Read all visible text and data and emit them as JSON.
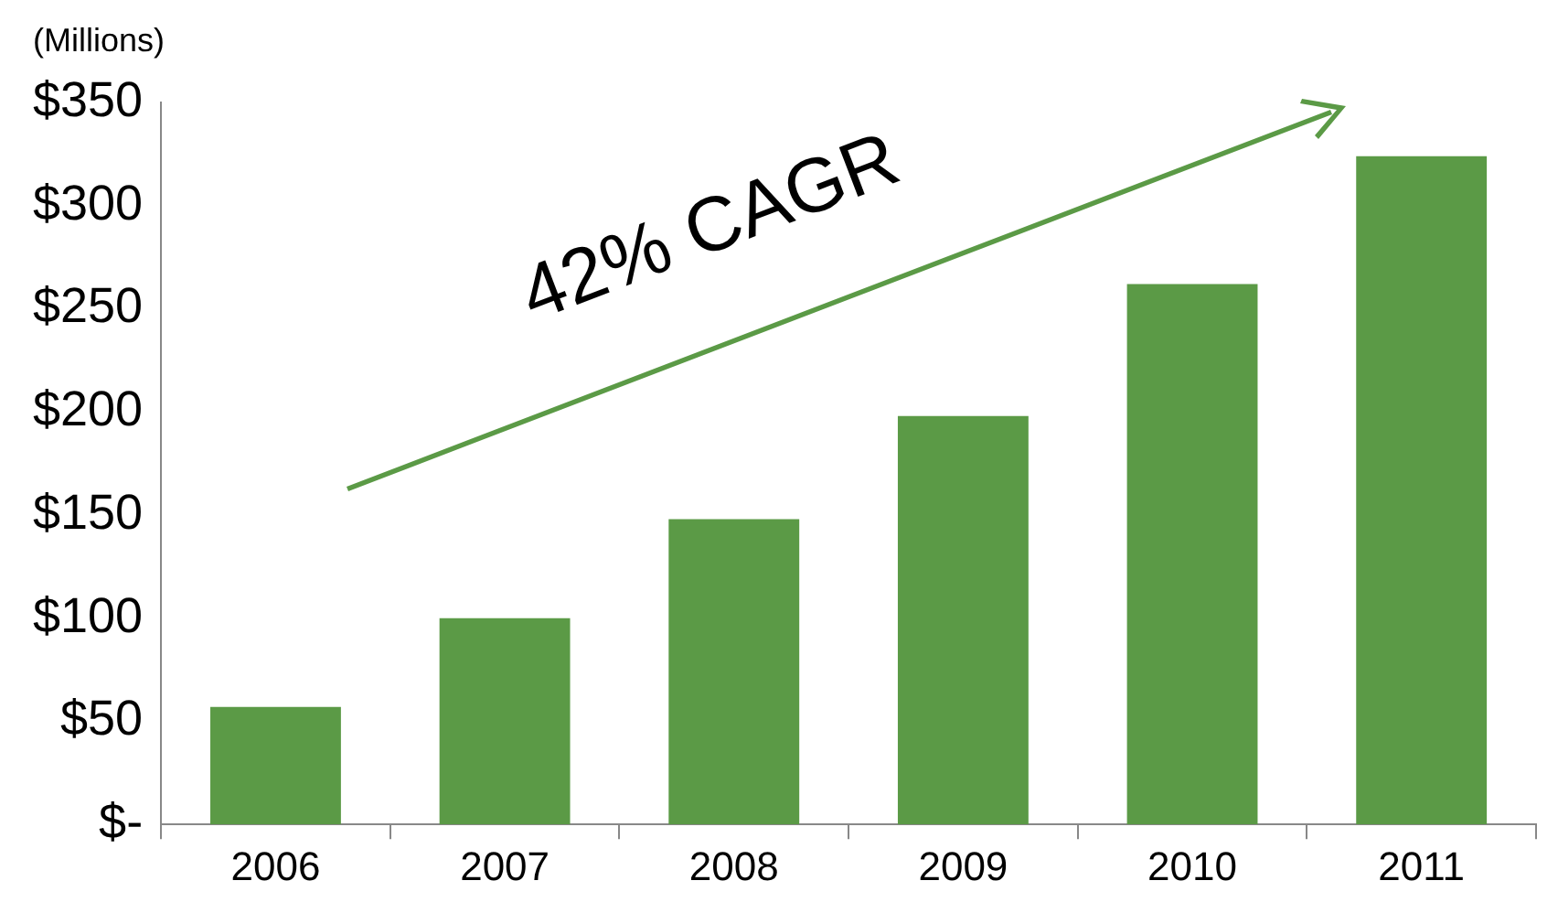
{
  "chart_data": {
    "type": "bar",
    "ylabel": "(Millions)",
    "categories": [
      "2006",
      "2007",
      "2008",
      "2009",
      "2010",
      "2011"
    ],
    "values": [
      57,
      100,
      148,
      198,
      262,
      324
    ],
    "color": "#5b9a46",
    "ylim": [
      0,
      350
    ],
    "yticks": [
      {
        "value": 0,
        "label": "$-"
      },
      {
        "value": 50,
        "label": "$50"
      },
      {
        "value": 100,
        "label": "$100"
      },
      {
        "value": 150,
        "label": "$150"
      },
      {
        "value": 200,
        "label": "$200"
      },
      {
        "value": 250,
        "label": "$250"
      },
      {
        "value": 300,
        "label": "$300"
      },
      {
        "value": 350,
        "label": "$350"
      }
    ],
    "grid": false,
    "legend": false,
    "annotations": [
      "42% CAGR"
    ]
  }
}
